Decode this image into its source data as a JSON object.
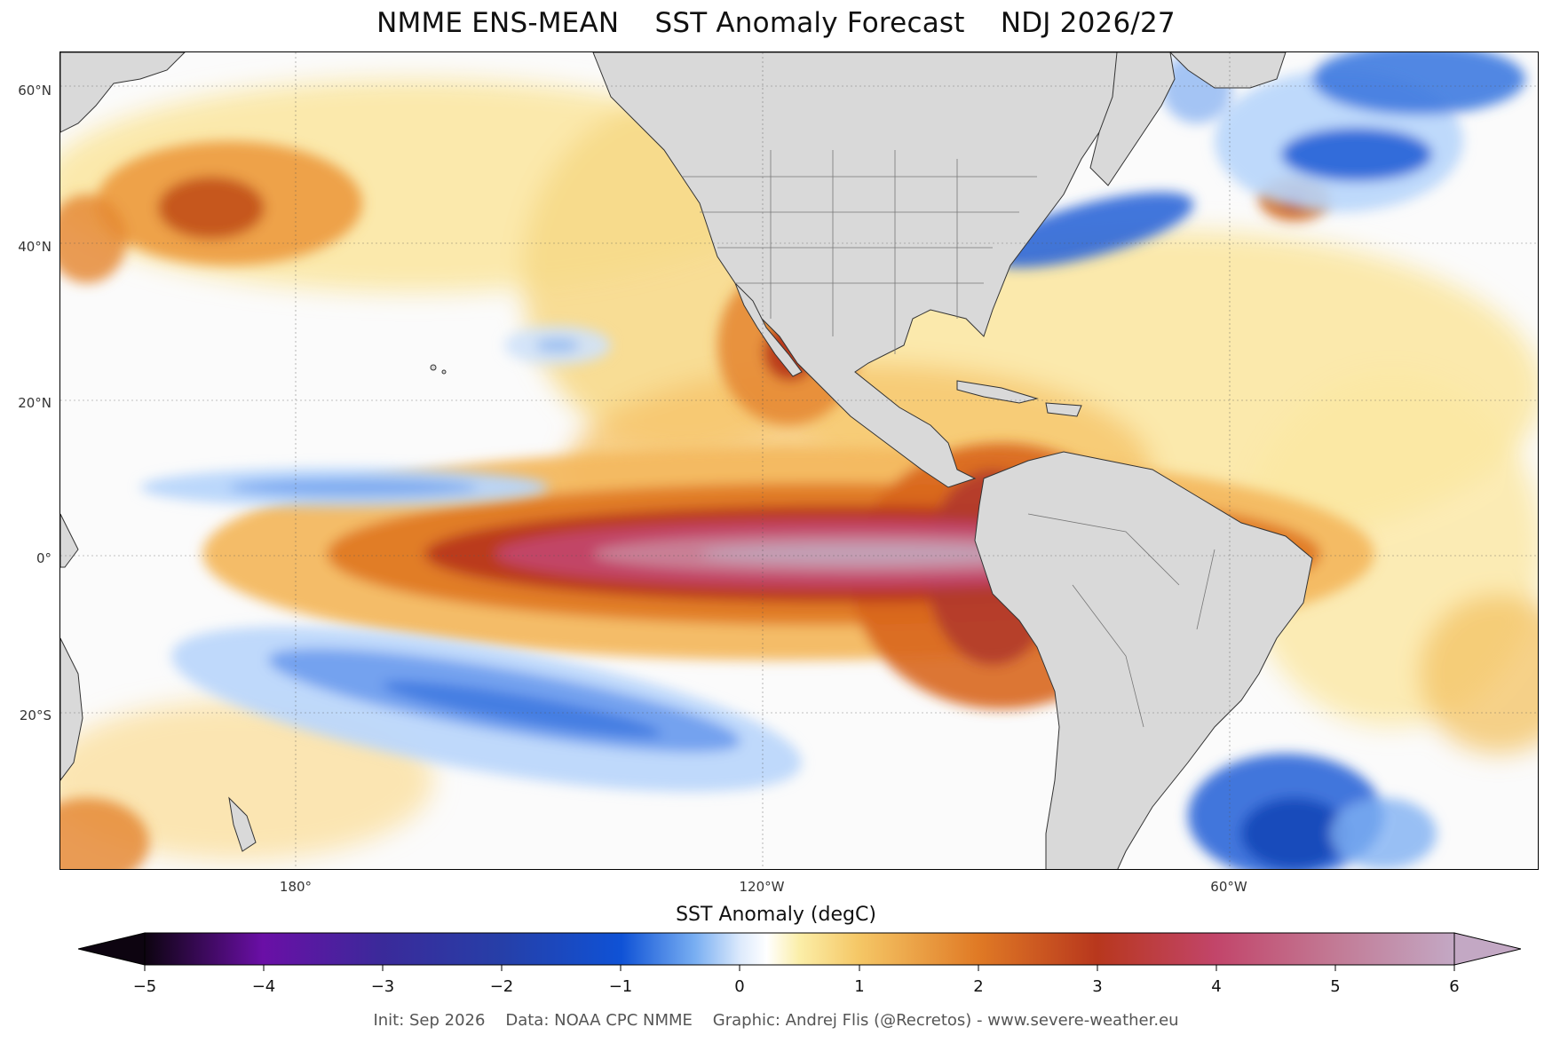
{
  "title": "NMME ENS-MEAN    SST Anomaly Forecast    NDJ 2026/27",
  "map": {
    "lat_labels": [
      "60°N",
      "40°N",
      "20°N",
      "0°",
      "20°S"
    ],
    "lon_labels": [
      "180°",
      "120°W",
      "60°W"
    ],
    "land_color": "#d9d9d9",
    "ocean_neutral_color": "#fbfbfb",
    "warm_anomaly_color": "#c2456a",
    "cool_anomaly_color": "#1f5fd6"
  },
  "colorbar": {
    "title": "SST Anomaly (degC)",
    "tick_labels": [
      "−5",
      "−4",
      "−3",
      "−2",
      "−1",
      "0",
      "1",
      "2",
      "3",
      "4",
      "5",
      "6"
    ],
    "range": [
      -5,
      6
    ],
    "extend": "both"
  },
  "credit": "Init: Sep 2026    Data: NOAA CPC NMME    Graphic: Andrej Flis (@Recretos) - www.severe-weather.eu"
}
